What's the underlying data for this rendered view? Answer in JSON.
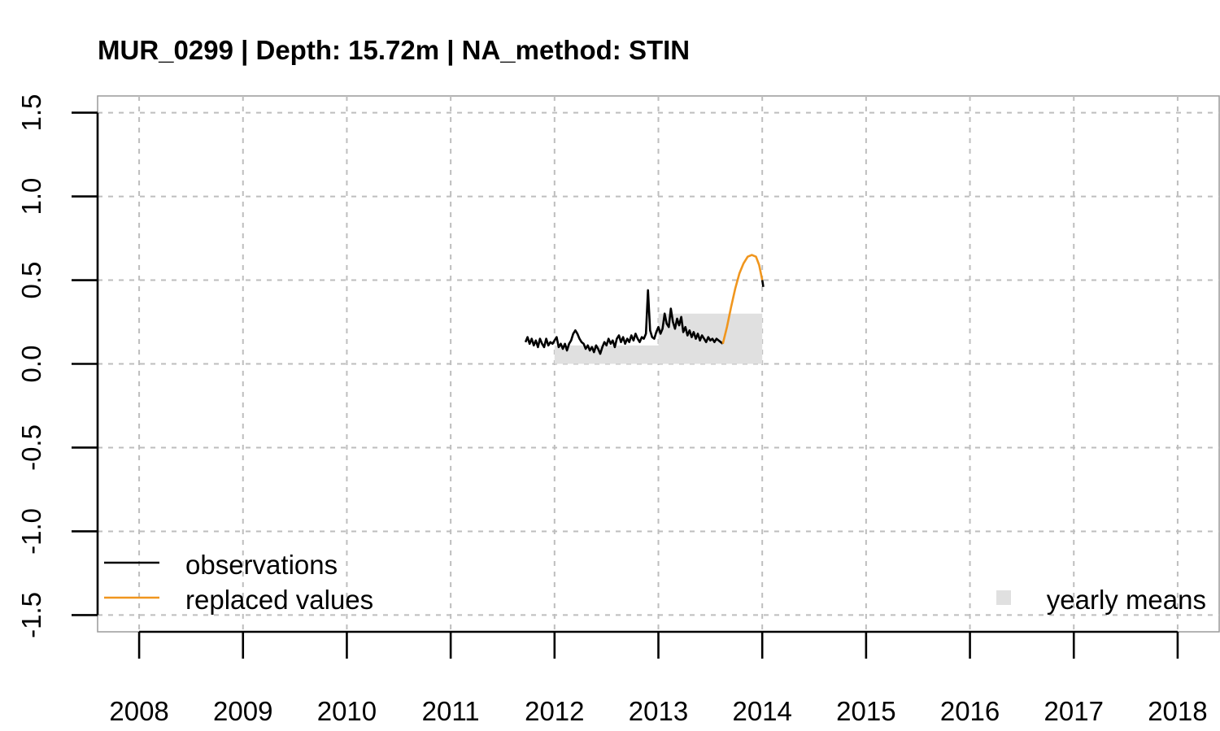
{
  "chart_data": {
    "type": "line",
    "title": "MUR_0299 | Depth: 15.72m | NA_method: STIN",
    "xlabel": "",
    "ylabel": "",
    "xlim": [
      2007.6,
      2018.4
    ],
    "ylim": [
      -1.6,
      1.6
    ],
    "x_ticks": [
      "2008",
      "2009",
      "2010",
      "2011",
      "2012",
      "2013",
      "2014",
      "2015",
      "2016",
      "2017",
      "2018"
    ],
    "y_ticks": [
      "-1.5",
      "-1.0",
      "-0.5",
      "0.0",
      "0.5",
      "1.0",
      "1.5"
    ],
    "grid": true,
    "colors": {
      "observations": "#000000",
      "replaced": "#F0961E",
      "yearly_means": "#E0E0E0",
      "grid": "#BEBEBE"
    },
    "yearly_means": [
      {
        "year": "2012",
        "value": 0.11
      },
      {
        "year": "2013",
        "value": 0.3
      }
    ],
    "series": [
      {
        "name": "observations",
        "points": [
          [
            2011.72,
            0.13
          ],
          [
            2011.74,
            0.16
          ],
          [
            2011.76,
            0.12
          ],
          [
            2011.78,
            0.15
          ],
          [
            2011.8,
            0.11
          ],
          [
            2011.82,
            0.14
          ],
          [
            2011.84,
            0.1
          ],
          [
            2011.86,
            0.15
          ],
          [
            2011.88,
            0.12
          ],
          [
            2011.9,
            0.1
          ],
          [
            2011.92,
            0.15
          ],
          [
            2011.94,
            0.11
          ],
          [
            2011.96,
            0.13
          ],
          [
            2011.98,
            0.12
          ],
          [
            2012.0,
            0.14
          ],
          [
            2012.02,
            0.16
          ],
          [
            2012.04,
            0.1
          ],
          [
            2012.06,
            0.12
          ],
          [
            2012.08,
            0.09
          ],
          [
            2012.1,
            0.12
          ],
          [
            2012.12,
            0.08
          ],
          [
            2012.14,
            0.12
          ],
          [
            2012.16,
            0.14
          ],
          [
            2012.18,
            0.18
          ],
          [
            2012.2,
            0.2
          ],
          [
            2012.22,
            0.18
          ],
          [
            2012.24,
            0.15
          ],
          [
            2012.26,
            0.13
          ],
          [
            2012.28,
            0.12
          ],
          [
            2012.3,
            0.09
          ],
          [
            2012.32,
            0.11
          ],
          [
            2012.34,
            0.08
          ],
          [
            2012.36,
            0.1
          ],
          [
            2012.38,
            0.07
          ],
          [
            2012.4,
            0.11
          ],
          [
            2012.42,
            0.09
          ],
          [
            2012.44,
            0.06
          ],
          [
            2012.46,
            0.1
          ],
          [
            2012.48,
            0.13
          ],
          [
            2012.5,
            0.11
          ],
          [
            2012.52,
            0.15
          ],
          [
            2012.54,
            0.12
          ],
          [
            2012.56,
            0.14
          ],
          [
            2012.58,
            0.1
          ],
          [
            2012.6,
            0.15
          ],
          [
            2012.62,
            0.17
          ],
          [
            2012.64,
            0.13
          ],
          [
            2012.66,
            0.16
          ],
          [
            2012.68,
            0.12
          ],
          [
            2012.7,
            0.15
          ],
          [
            2012.72,
            0.13
          ],
          [
            2012.74,
            0.17
          ],
          [
            2012.76,
            0.14
          ],
          [
            2012.78,
            0.18
          ],
          [
            2012.8,
            0.15
          ],
          [
            2012.82,
            0.13
          ],
          [
            2012.84,
            0.16
          ],
          [
            2012.86,
            0.15
          ],
          [
            2012.88,
            0.18
          ],
          [
            2012.9,
            0.44
          ],
          [
            2012.92,
            0.2
          ],
          [
            2012.94,
            0.16
          ],
          [
            2012.96,
            0.15
          ],
          [
            2012.98,
            0.19
          ],
          [
            2013.0,
            0.22
          ],
          [
            2013.02,
            0.18
          ],
          [
            2013.04,
            0.21
          ],
          [
            2013.06,
            0.3
          ],
          [
            2013.08,
            0.24
          ],
          [
            2013.1,
            0.22
          ],
          [
            2013.12,
            0.33
          ],
          [
            2013.14,
            0.25
          ],
          [
            2013.16,
            0.21
          ],
          [
            2013.18,
            0.27
          ],
          [
            2013.2,
            0.23
          ],
          [
            2013.22,
            0.28
          ],
          [
            2013.24,
            0.19
          ],
          [
            2013.26,
            0.22
          ],
          [
            2013.28,
            0.17
          ],
          [
            2013.3,
            0.2
          ],
          [
            2013.32,
            0.16
          ],
          [
            2013.34,
            0.19
          ],
          [
            2013.36,
            0.15
          ],
          [
            2013.38,
            0.18
          ],
          [
            2013.4,
            0.14
          ],
          [
            2013.42,
            0.17
          ],
          [
            2013.44,
            0.15
          ],
          [
            2013.46,
            0.13
          ],
          [
            2013.48,
            0.16
          ],
          [
            2013.5,
            0.14
          ],
          [
            2013.52,
            0.15
          ],
          [
            2013.54,
            0.13
          ],
          [
            2013.56,
            0.15
          ],
          [
            2013.58,
            0.14
          ],
          [
            2013.6,
            0.13
          ],
          [
            2013.62,
            0.12
          ]
        ]
      },
      {
        "name": "replaced values",
        "points": [
          [
            2013.62,
            0.12
          ],
          [
            2013.66,
            0.22
          ],
          [
            2013.7,
            0.34
          ],
          [
            2013.74,
            0.45
          ],
          [
            2013.78,
            0.54
          ],
          [
            2013.82,
            0.6
          ],
          [
            2013.86,
            0.64
          ],
          [
            2013.9,
            0.65
          ],
          [
            2013.94,
            0.64
          ],
          [
            2013.97,
            0.59
          ],
          [
            2014.0,
            0.5
          ]
        ]
      },
      {
        "name": "observations_tail",
        "points": [
          [
            2014.0,
            0.5
          ],
          [
            2014.01,
            0.46
          ]
        ]
      }
    ],
    "legend": {
      "observations": "observations",
      "replaced": "replaced values",
      "yearly_means": "yearly means",
      "placement": "bottom"
    }
  }
}
